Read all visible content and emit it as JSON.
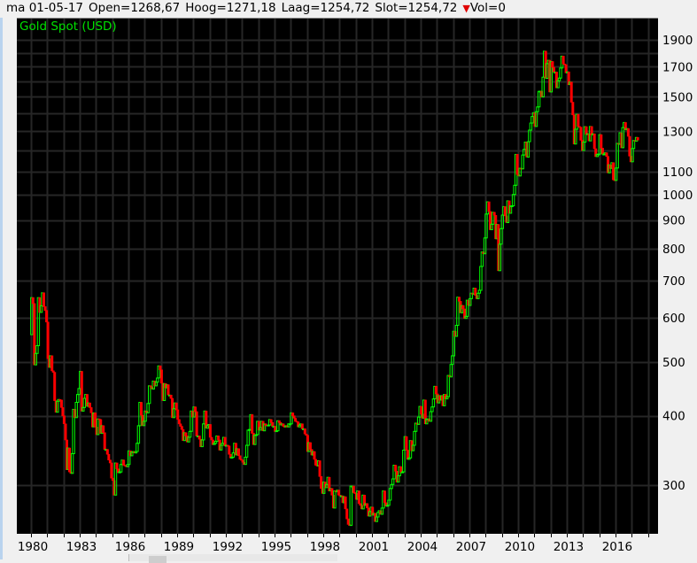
{
  "header": {
    "date": "ma 01-05-17",
    "open": "Open=1268,67",
    "high": "Hoog=1271,18",
    "low": "Laag=1254,72",
    "close": "Slot=1254,72",
    "vol_icon": "triangle-down-icon",
    "vol": "Vol=0"
  },
  "colors": {
    "up": "#00ff00",
    "down": "#ff0000",
    "background": "#000000",
    "grid": "#262626",
    "title": "#00e000"
  },
  "chart_data": {
    "type": "candlestick",
    "title": "Gold Spot (USD)",
    "y_scale": "log",
    "ylim": [
      245,
      2080
    ],
    "y_ticks": [
      1900,
      1700,
      1500,
      1300,
      1100,
      1000,
      900,
      800,
      700,
      600,
      500,
      400,
      300
    ],
    "y_gridlines": [
      1900,
      1800,
      1700,
      1600,
      1500,
      1400,
      1300,
      1200,
      1100,
      1000,
      900,
      800,
      700,
      600,
      500,
      400,
      300
    ],
    "x_ticks": [
      "1980",
      "1983",
      "1986",
      "1989",
      "1992",
      "1995",
      "1998",
      "2001",
      "2004",
      "2007",
      "2010",
      "2013",
      "2016"
    ],
    "x_start": "1980-01",
    "interval": "month",
    "first_open": 560,
    "grid": true,
    "axis_position": "right",
    "monthly_close": [
      653,
      637,
      494,
      518,
      535,
      653,
      614,
      631,
      666,
      629,
      619,
      590,
      507,
      489,
      513,
      482,
      479,
      426,
      406,
      425,
      428,
      427,
      414,
      400,
      387,
      362,
      320,
      350,
      317,
      315,
      342,
      411,
      397,
      423,
      437,
      448,
      481,
      408,
      414,
      430,
      437,
      416,
      422,
      414,
      405,
      382,
      405,
      382,
      370,
      395,
      394,
      372,
      384,
      373,
      348,
      348,
      341,
      333,
      329,
      309,
      306,
      288,
      329,
      321,
      316,
      317,
      327,
      333,
      326,
      325,
      324,
      327,
      346,
      339,
      344,
      345,
      343,
      345,
      357,
      384,
      423,
      401,
      384,
      391,
      408,
      405,
      421,
      453,
      451,
      447,
      462,
      453,
      460,
      468,
      492,
      484,
      458,
      426,
      457,
      449,
      455,
      436,
      436,
      430,
      397,
      412,
      422,
      410,
      394,
      387,
      383,
      378,
      361,
      373,
      368,
      359,
      366,
      375,
      408,
      398,
      415,
      407,
      368,
      368,
      363,
      352,
      362,
      387,
      408,
      380,
      384,
      386,
      366,
      362,
      355,
      357,
      360,
      368,
      362,
      347,
      354,
      357,
      366,
      353,
      354,
      353,
      341,
      336,
      337,
      343,
      357,
      340,
      349,
      339,
      334,
      333,
      330,
      327,
      337,
      354,
      377,
      378,
      402,
      372,
      355,
      369,
      370,
      391,
      377,
      381,
      391,
      376,
      387,
      385,
      384,
      385,
      394,
      389,
      383,
      383,
      375,
      376,
      392,
      389,
      385,
      387,
      383,
      382,
      384,
      382,
      387,
      387,
      405,
      400,
      396,
      391,
      390,
      382,
      385,
      387,
      379,
      379,
      371,
      369,
      345,
      358,
      348,
      340,
      345,
      334,
      326,
      325,
      332,
      311,
      296,
      290,
      304,
      297,
      301,
      310,
      293,
      296,
      288,
      273,
      293,
      292,
      294,
      288,
      287,
      287,
      279,
      286,
      272,
      261,
      255,
      254,
      299,
      299,
      291,
      290,
      283,
      293,
      278,
      276,
      272,
      288,
      276,
      278,
      273,
      264,
      269,
      274,
      265,
      267,
      258,
      263,
      268,
      270,
      266,
      273,
      293,
      279,
      275,
      276,
      282,
      296,
      301,
      308,
      326,
      318,
      304,
      312,
      324,
      316,
      317,
      347,
      367,
      347,
      334,
      336,
      361,
      346,
      354,
      375,
      388,
      386,
      398,
      416,
      403,
      396,
      427,
      387,
      395,
      395,
      391,
      407,
      415,
      429,
      452,
      438,
      422,
      435,
      427,
      435,
      417,
      437,
      429,
      433,
      473,
      470,
      495,
      513,
      568,
      556,
      582,
      654,
      643,
      613,
      632,
      623,
      599,
      604,
      646,
      632,
      650,
      665,
      662,
      679,
      659,
      650,
      665,
      673,
      743,
      789,
      783,
      836,
      923,
      971,
      933,
      865,
      885,
      930,
      918,
      833,
      884,
      730,
      815,
      869,
      919,
      952,
      916,
      891,
      975,
      926,
      955,
      955,
      1001,
      1040,
      1182,
      1087,
      1081,
      1116,
      1113,
      1179,
      1207,
      1244,
      1169,
      1246,
      1307,
      1346,
      1383,
      1405,
      1327,
      1411,
      1439,
      1535,
      1536,
      1500,
      1628,
      1813,
      1620,
      1722,
      1746,
      1531,
      1737,
      1696,
      1662,
      1663,
      1558,
      1604,
      1622,
      1691,
      1776,
      1719,
      1714,
      1657,
      1664,
      1578,
      1595,
      1467,
      1392,
      1234,
      1312,
      1396,
      1327,
      1323,
      1253,
      1201,
      1244,
      1326,
      1284,
      1288,
      1250,
      1327,
      1282,
      1287,
      1210,
      1171,
      1182,
      1184,
      1283,
      1213,
      1183,
      1184,
      1190,
      1172,
      1095,
      1132,
      1115,
      1142,
      1064,
      1061,
      1117,
      1237,
      1233,
      1293,
      1215,
      1321,
      1349,
      1309,
      1316,
      1274,
      1174,
      1146,
      1211,
      1252,
      1249,
      1268,
      1254.72
    ]
  }
}
